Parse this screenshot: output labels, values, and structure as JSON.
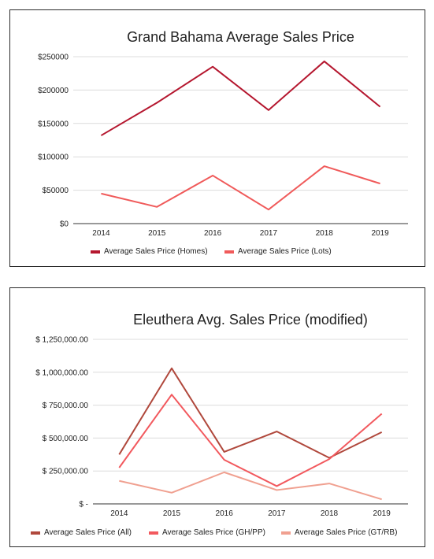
{
  "chart_data": [
    {
      "type": "line",
      "title": "Grand Bahama Average Sales Price",
      "categories": [
        "2014",
        "2015",
        "2016",
        "2017",
        "2018",
        "2019"
      ],
      "ylim": [
        0,
        250000
      ],
      "yticks": [
        {
          "value": 0,
          "label": "$0"
        },
        {
          "value": 50000,
          "label": "$50000"
        },
        {
          "value": 100000,
          "label": "$100000"
        },
        {
          "value": 150000,
          "label": "$150000"
        },
        {
          "value": 200000,
          "label": "$200000"
        },
        {
          "value": 250000,
          "label": "$250000"
        }
      ],
      "grid": true,
      "legend": "bottom",
      "series": [
        {
          "name": "Average Sales Price (Homes)",
          "color": "#b5172f",
          "values": [
            132000,
            181000,
            235000,
            170000,
            243000,
            175000
          ]
        },
        {
          "name": "Average Sales Price (Lots)",
          "color": "#f05a5a",
          "values": [
            45000,
            25000,
            72000,
            21000,
            86000,
            60000
          ]
        }
      ]
    },
    {
      "type": "line",
      "title": "Eleuthera Avg. Sales Price (modified)",
      "categories": [
        "2014",
        "2015",
        "2016",
        "2017",
        "2018",
        "2019"
      ],
      "ylim": [
        0,
        1250000
      ],
      "yticks": [
        {
          "value": 0,
          "label": "$ -"
        },
        {
          "value": 250000,
          "label": "$ 250,000.00"
        },
        {
          "value": 500000,
          "label": "$ 500,000.00"
        },
        {
          "value": 750000,
          "label": "$ 750,000.00"
        },
        {
          "value": 1000000,
          "label": "$ 1,000,000.00"
        },
        {
          "value": 1250000,
          "label": "$ 1,250,000.00"
        }
      ],
      "grid": true,
      "legend": "bottom",
      "series": [
        {
          "name": "Average Sales Price (All)",
          "color": "#b0483c",
          "values": [
            375000,
            1030000,
            395000,
            550000,
            350000,
            545000
          ]
        },
        {
          "name": "Average Sales Price (GH/PP)",
          "color": "#f2595e",
          "values": [
            275000,
            830000,
            335000,
            135000,
            340000,
            685000
          ]
        },
        {
          "name": "Average Sales Price (GT/RB)",
          "color": "#f0a090",
          "values": [
            175000,
            85000,
            240000,
            105000,
            155000,
            35000
          ]
        }
      ]
    }
  ]
}
